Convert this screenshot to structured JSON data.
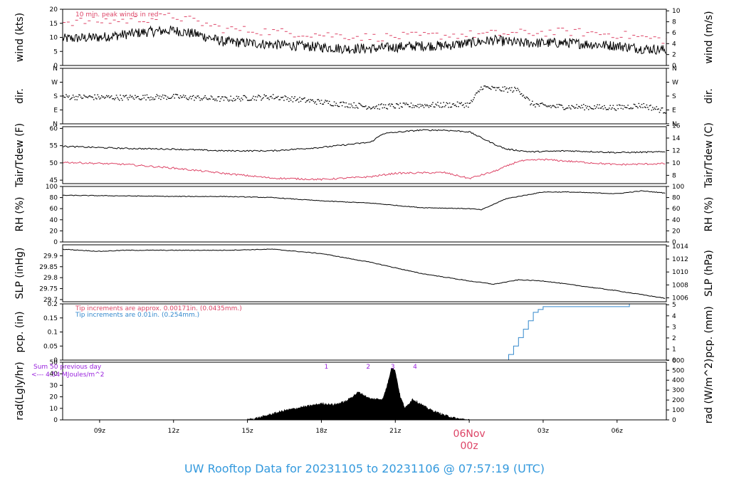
{
  "title": "UW Rooftop Data for 20231105  to  20231106 @ 07:57:19  (UTC)",
  "colors": {
    "black": "#000000",
    "red": "#dd4466",
    "blue": "#3388cc",
    "purple": "#9922dd",
    "title": "#3399dd"
  },
  "x_axis": {
    "range_hours": [
      -16.5,
      8.0
    ],
    "ticks": [
      {
        "hour": -15,
        "label": "09z"
      },
      {
        "hour": -12,
        "label": "12z"
      },
      {
        "hour": -9,
        "label": "15z"
      },
      {
        "hour": -6,
        "label": "18z"
      },
      {
        "hour": -3,
        "label": "21z"
      },
      {
        "hour": 3,
        "label": "03z"
      },
      {
        "hour": 6,
        "label": "06z"
      }
    ],
    "date_label": "06Nov",
    "date_sublabel": "00z"
  },
  "chart_data": [
    {
      "type": "line",
      "id": "wind",
      "ylabel": "wind (kts)",
      "ylabel_right": "wind (m/s)",
      "ylim": [
        0,
        20
      ],
      "yticks": [
        0,
        5,
        10,
        15,
        20
      ],
      "ylim_right": [
        0,
        10.29
      ],
      "yticks_right": [
        0,
        2,
        4,
        6,
        8,
        10
      ],
      "annotation": "10 min. peak winds in red",
      "series": [
        {
          "color": "black",
          "style": "line",
          "noise": 1.8,
          "x": [
            -16.5,
            -15,
            -14,
            -13,
            -12,
            -11,
            -10,
            -9,
            -8,
            -7,
            -6,
            -5,
            -4,
            -3,
            -2,
            -1,
            0,
            1,
            2,
            3,
            4,
            5,
            6,
            7,
            8
          ],
          "y": [
            9.5,
            10,
            11,
            12,
            12.5,
            11,
            8.5,
            8,
            7.5,
            7,
            6.5,
            6,
            6,
            6.5,
            7,
            7,
            8,
            9,
            8,
            8,
            8,
            7.5,
            7,
            6,
            5.5
          ]
        },
        {
          "color": "red",
          "style": "dash",
          "noise": 1.5,
          "x": [
            -16.5,
            -14,
            -12,
            -10,
            -8,
            -6,
            -4,
            -2,
            0,
            2,
            4,
            6,
            8
          ],
          "y": [
            15.5,
            16,
            17.5,
            13,
            12,
            11,
            10,
            10.5,
            11,
            11.5,
            12,
            11,
            9
          ]
        }
      ]
    },
    {
      "type": "scatter",
      "id": "dir",
      "ylabel": "dir.",
      "ylabel_right": "dir.",
      "ylim": [
        0,
        360
      ],
      "yticks": [
        0,
        90,
        180,
        270,
        360
      ],
      "ytick_labels": [
        "N",
        "E",
        "S",
        "W",
        "N"
      ],
      "series": [
        {
          "color": "black",
          "style": "points",
          "noise": 18,
          "x": [
            -16.5,
            -14,
            -12,
            -10,
            -8,
            -6,
            -4,
            -2,
            0,
            0.5,
            1,
            2,
            2.5,
            3,
            4,
            6,
            7,
            8
          ],
          "y": [
            175,
            170,
            175,
            160,
            175,
            140,
            110,
            120,
            125,
            240,
            225,
            220,
            130,
            115,
            110,
            105,
            120,
            80
          ]
        }
      ]
    },
    {
      "type": "line",
      "id": "temp",
      "ylabel": "Tair/Tdew (F)",
      "ylabel_right": "Tair/Tdew (C)",
      "ylim": [
        44,
        60.5
      ],
      "yticks": [
        45,
        50,
        55,
        60
      ],
      "ylim_right": [
        6.67,
        15.83
      ],
      "yticks_right": [
        8,
        10,
        12,
        14,
        16
      ],
      "series": [
        {
          "color": "black",
          "style": "line",
          "noise": 0.2,
          "x": [
            -16.5,
            -14,
            -12,
            -10,
            -8,
            -6,
            -4,
            -3.5,
            -2,
            -1,
            0,
            1,
            1.5,
            2.5,
            4,
            6,
            8
          ],
          "y": [
            54.8,
            54.2,
            54,
            53.5,
            53.5,
            54.5,
            56,
            58.5,
            59.5,
            59.5,
            59,
            55.5,
            54,
            53.2,
            53.5,
            53,
            53.2
          ]
        },
        {
          "color": "red",
          "style": "line",
          "noise": 0.25,
          "x": [
            -16.5,
            -14,
            -12,
            -10,
            -8,
            -6,
            -4,
            -3,
            -1,
            0,
            1,
            2,
            3,
            4,
            6,
            8
          ],
          "y": [
            50.2,
            49.6,
            48.5,
            47,
            45.6,
            45.2,
            46,
            47,
            47.2,
            45.5,
            47.5,
            50.5,
            51,
            50.5,
            49.5,
            49.8
          ]
        }
      ]
    },
    {
      "type": "line",
      "id": "rh",
      "ylabel": "RH (%)",
      "ylabel_right": "RH (%)",
      "ylim": [
        0,
        100
      ],
      "yticks": [
        0,
        20,
        40,
        60,
        80,
        100
      ],
      "yticks_right": [
        0,
        20,
        40,
        60,
        80,
        100
      ],
      "series": [
        {
          "color": "black",
          "style": "line",
          "noise": 0.6,
          "x": [
            -16.5,
            -14,
            -12,
            -10,
            -8,
            -6,
            -4,
            -2,
            0,
            0.5,
            1.5,
            3,
            4,
            6,
            7,
            8
          ],
          "y": [
            84,
            83,
            82,
            82,
            80,
            74,
            70,
            62,
            60,
            58,
            78,
            90,
            90,
            87,
            92,
            88
          ]
        }
      ]
    },
    {
      "type": "line",
      "id": "slp",
      "ylabel": "SLP (inHg)",
      "ylabel_right": "SLP (hPa)",
      "ylim": [
        29.69,
        29.95
      ],
      "yticks": [
        29.7,
        29.75,
        29.8,
        29.85,
        29.9
      ],
      "ylim_right": [
        1005.4,
        1014.2
      ],
      "yticks_right": [
        1006,
        1008,
        1010,
        1012,
        1014
      ],
      "series": [
        {
          "color": "black",
          "style": "line",
          "noise": 0.0015,
          "x": [
            -16.5,
            -15,
            -14,
            -12,
            -10,
            -8,
            -6,
            -4,
            -2,
            0,
            1,
            2,
            3,
            4,
            6,
            8
          ],
          "y": [
            29.93,
            29.92,
            29.925,
            29.925,
            29.925,
            29.93,
            29.91,
            29.87,
            29.82,
            29.785,
            29.77,
            29.79,
            29.785,
            29.77,
            29.74,
            29.705
          ]
        }
      ]
    },
    {
      "type": "line",
      "id": "pcp",
      "ylabel": "pcp. (in)",
      "ylabel_right": "pcp. (mm)",
      "ylim": [
        0,
        0.2
      ],
      "yticks": [
        0,
        0.05,
        0.1,
        0.15,
        0.2
      ],
      "ylim_right": [
        0,
        5.08
      ],
      "yticks_right": [
        0,
        1,
        2,
        3,
        4,
        5
      ],
      "annotations": [
        {
          "text": "Tip increments are approx. 0.00171in. (0.0435mm.)",
          "color": "red"
        },
        {
          "text": "Tip increments are 0.01in. (0.254mm.)",
          "color": "blue"
        }
      ],
      "series": [
        {
          "color": "blue",
          "style": "step",
          "x": [
            -16.5,
            1.5,
            1.6,
            1.8,
            2.0,
            2.2,
            2.4,
            2.6,
            2.8,
            3.0,
            6.5,
            8
          ],
          "y": [
            0,
            0,
            0.02,
            0.05,
            0.08,
            0.11,
            0.14,
            0.17,
            0.18,
            0.19,
            0.2,
            0.2
          ]
        }
      ]
    },
    {
      "type": "area",
      "id": "rad",
      "ylabel": "rad(Lgly/hr)",
      "ylabel_right": "rad (W/m^2)",
      "ylim": [
        0,
        50
      ],
      "yticks": [
        0,
        10,
        20,
        30,
        40,
        50
      ],
      "ylim_right": [
        0,
        581
      ],
      "yticks_right": [
        0,
        100,
        200,
        300,
        400,
        500,
        600
      ],
      "annotations": [
        {
          "text": "Sum 50 previous day",
          "color": "purple"
        },
        {
          "text": "<--- 4.54 MJoules/m^2",
          "color": "purple"
        }
      ],
      "markers": [
        {
          "hour": -5.8,
          "label": "1"
        },
        {
          "hour": -4.1,
          "label": "2"
        },
        {
          "hour": -3.1,
          "label": "3"
        },
        {
          "hour": -2.2,
          "label": "4"
        }
      ],
      "series": [
        {
          "color": "black",
          "style": "area",
          "noise": 1.0,
          "x": [
            -9,
            -8.5,
            -8,
            -7.5,
            -7,
            -6.5,
            -6,
            -5.5,
            -5,
            -4.5,
            -4,
            -3.5,
            -3.3,
            -3.15,
            -3.0,
            -2.8,
            -2.6,
            -2.3,
            -2.0,
            -1.7,
            -1.4,
            -1.0,
            -0.5,
            0
          ],
          "y": [
            0,
            2,
            5,
            8,
            10,
            12,
            14,
            13,
            16,
            24,
            18,
            18,
            32,
            46,
            42,
            20,
            10,
            18,
            14,
            10,
            7,
            4,
            1,
            0
          ]
        }
      ]
    }
  ]
}
